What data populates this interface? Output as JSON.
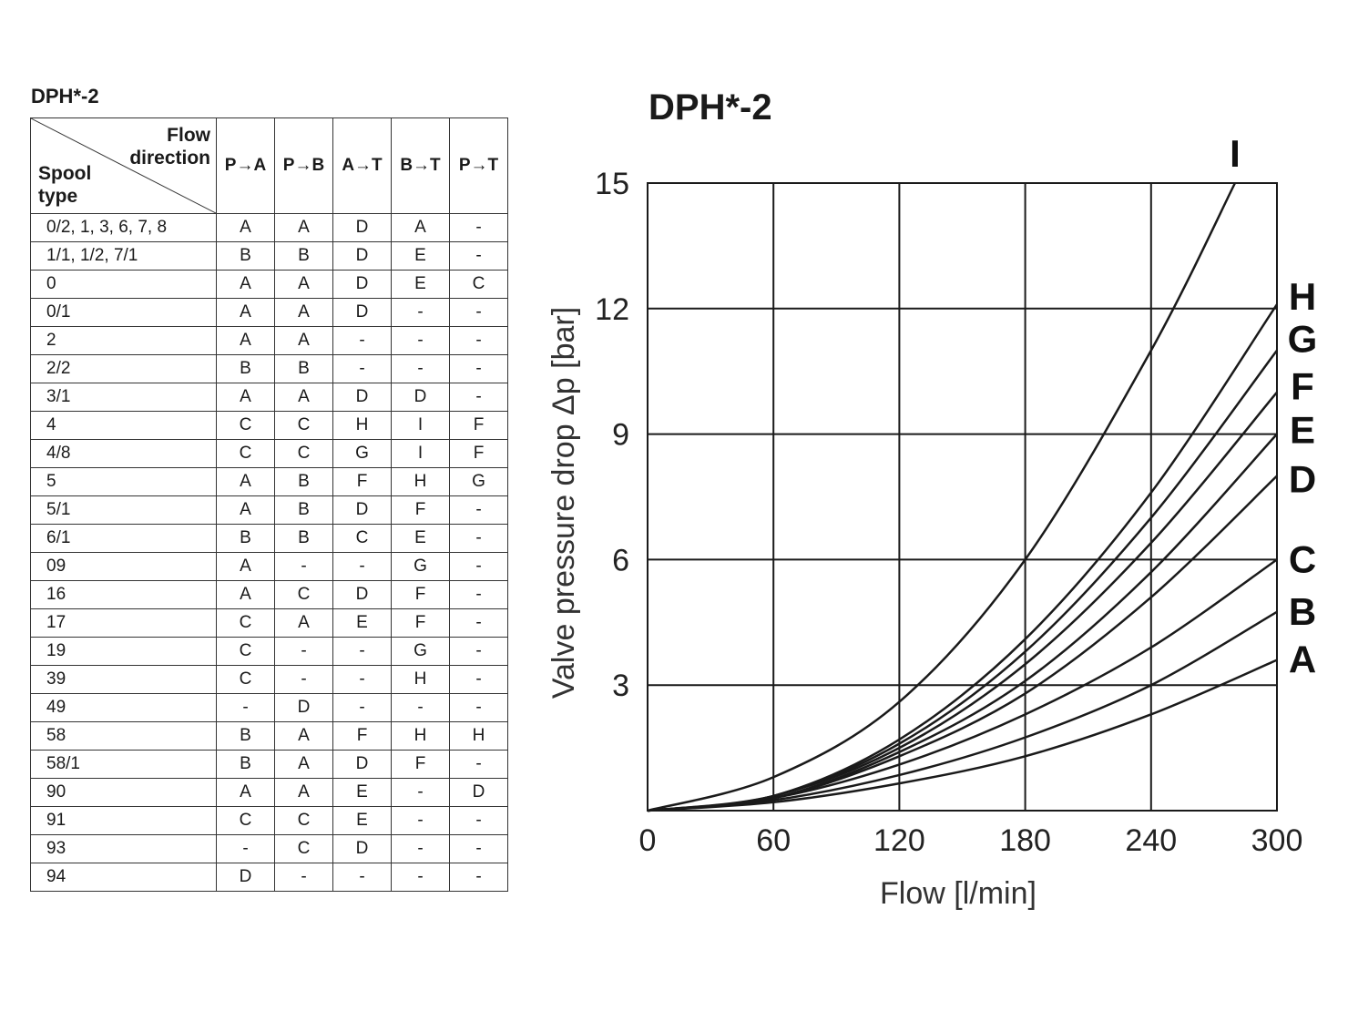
{
  "table": {
    "title": "DPH*-2",
    "corner": {
      "flow_line1": "Flow",
      "flow_line2": "direction",
      "spool_line1": "Spool",
      "spool_line2": "type"
    },
    "columns": [
      "P→A",
      "P→B",
      "A→T",
      "B→T",
      "P→T"
    ],
    "rows": [
      [
        "0/2, 1, 3, 6, 7, 8",
        "A",
        "A",
        "D",
        "A",
        "-"
      ],
      [
        "1/1, 1/2, 7/1",
        "B",
        "B",
        "D",
        "E",
        "-"
      ],
      [
        "0",
        "A",
        "A",
        "D",
        "E",
        "C"
      ],
      [
        "0/1",
        "A",
        "A",
        "D",
        "-",
        "-"
      ],
      [
        "2",
        "A",
        "A",
        "-",
        "-",
        "-"
      ],
      [
        "2/2",
        "B",
        "B",
        "-",
        "-",
        "-"
      ],
      [
        "3/1",
        "A",
        "A",
        "D",
        "D",
        "-"
      ],
      [
        "4",
        "C",
        "C",
        "H",
        "I",
        "F"
      ],
      [
        "4/8",
        "C",
        "C",
        "G",
        "I",
        "F"
      ],
      [
        "5",
        "A",
        "B",
        "F",
        "H",
        "G"
      ],
      [
        "5/1",
        "A",
        "B",
        "D",
        "F",
        "-"
      ],
      [
        "6/1",
        "B",
        "B",
        "C",
        "E",
        "-"
      ],
      [
        "09",
        "A",
        "-",
        "-",
        "G",
        "-"
      ],
      [
        "16",
        "A",
        "C",
        "D",
        "F",
        "-"
      ],
      [
        "17",
        "C",
        "A",
        "E",
        "F",
        "-"
      ],
      [
        "19",
        "C",
        "-",
        "-",
        "G",
        "-"
      ],
      [
        "39",
        "C",
        "-",
        "-",
        "H",
        "-"
      ],
      [
        "49",
        "-",
        "D",
        "-",
        "-",
        "-"
      ],
      [
        "58",
        "B",
        "A",
        "F",
        "H",
        "H"
      ],
      [
        "58/1",
        "B",
        "A",
        "D",
        "F",
        "-"
      ],
      [
        "90",
        "A",
        "A",
        "E",
        "-",
        "D"
      ],
      [
        "91",
        "C",
        "C",
        "E",
        "-",
        "-"
      ],
      [
        "93",
        "-",
        "C",
        "D",
        "-",
        "-"
      ],
      [
        "94",
        "D",
        "-",
        "-",
        "-",
        "-"
      ]
    ]
  },
  "chart_data": {
    "type": "line",
    "title": "DPH*-2",
    "xlabel": "Flow [l/min]",
    "ylabel": "Valve pressure drop  Δp [bar]",
    "xlim": [
      0,
      300
    ],
    "ylim": [
      0,
      15
    ],
    "xticks": [
      "0",
      "60",
      "120",
      "180",
      "240",
      "300"
    ],
    "yticks": [
      "3",
      "6",
      "9",
      "12",
      "15"
    ],
    "grid": true,
    "curve_color": "#1a1a1a",
    "series": [
      {
        "name": "A",
        "x": [
          0,
          60,
          120,
          180,
          240,
          300
        ],
        "y": [
          0,
          0.2,
          0.65,
          1.3,
          2.3,
          3.6
        ]
      },
      {
        "name": "B",
        "x": [
          0,
          60,
          120,
          180,
          240,
          300
        ],
        "y": [
          0,
          0.25,
          0.85,
          1.75,
          3.0,
          4.75
        ]
      },
      {
        "name": "C",
        "x": [
          0,
          60,
          120,
          180,
          240,
          300
        ],
        "y": [
          0,
          0.3,
          1.1,
          2.3,
          3.9,
          6.0
        ]
      },
      {
        "name": "D",
        "x": [
          0,
          60,
          120,
          180,
          240,
          300
        ],
        "y": [
          0,
          0.3,
          1.3,
          2.8,
          5.1,
          8.0
        ]
      },
      {
        "name": "E",
        "x": [
          0,
          60,
          120,
          180,
          240,
          300
        ],
        "y": [
          0,
          0.3,
          1.4,
          3.1,
          5.7,
          9.0
        ]
      },
      {
        "name": "F",
        "x": [
          0,
          60,
          120,
          180,
          240,
          300
        ],
        "y": [
          0,
          0.35,
          1.5,
          3.5,
          6.4,
          10.0
        ]
      },
      {
        "name": "G",
        "x": [
          0,
          60,
          120,
          180,
          240,
          300
        ],
        "y": [
          0,
          0.35,
          1.6,
          3.8,
          7.0,
          11.0
        ]
      },
      {
        "name": "H",
        "x": [
          0,
          60,
          120,
          180,
          240,
          300
        ],
        "y": [
          0,
          0.35,
          1.7,
          4.1,
          7.6,
          12.1
        ]
      },
      {
        "name": "I",
        "x": [
          0,
          60,
          120,
          180,
          240,
          280
        ],
        "y": [
          0,
          0.8,
          2.6,
          6.0,
          11.0,
          15.0
        ]
      }
    ]
  }
}
